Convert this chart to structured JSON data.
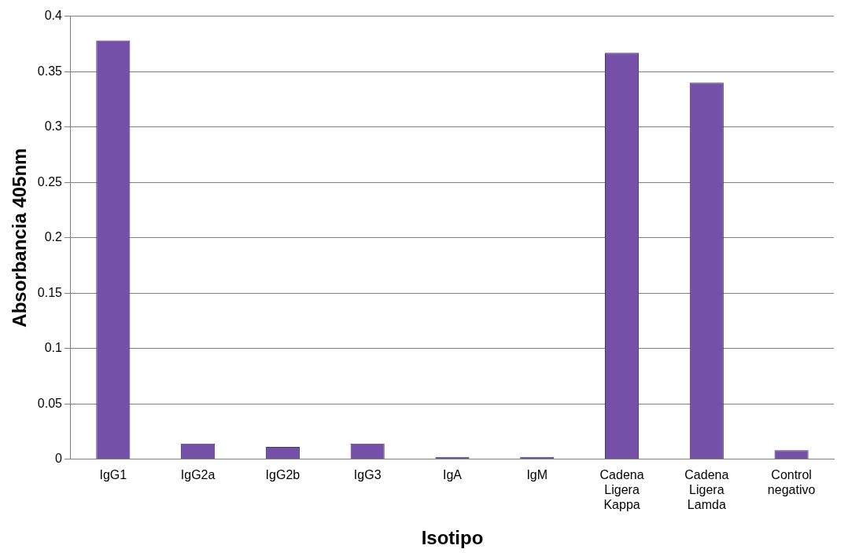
{
  "chart_data": {
    "type": "bar",
    "xlabel": "Isotipo",
    "ylabel": "Absorbancia 405nm",
    "categories": [
      "IgG1",
      "IgG2a",
      "IgG2b",
      "IgG3",
      "IgA",
      "IgM",
      "Cadena Ligera Kappa",
      "Cadena Ligera Lamda",
      "Control negativo"
    ],
    "values": [
      0.378,
      0.014,
      0.011,
      0.014,
      0.002,
      0.002,
      0.367,
      0.34,
      0.008
    ],
    "color": "#7550a8",
    "ylim": [
      0,
      0.4
    ],
    "yticks": [
      0,
      0.05,
      0.1,
      0.15,
      0.2,
      0.25,
      0.3,
      0.35,
      0.4
    ],
    "grid": "y",
    "legend": false
  }
}
